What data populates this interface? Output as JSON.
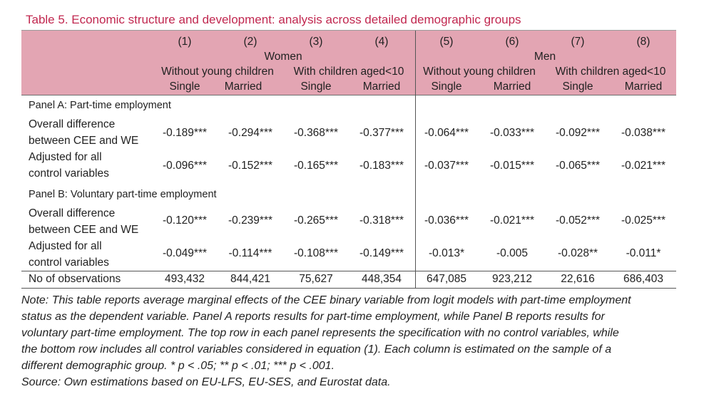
{
  "title": "Table 5. Economic structure and development: analysis across detailed demographic groups",
  "header": {
    "column_numbers": [
      "(1)",
      "(2)",
      "(3)",
      "(4)",
      "(5)",
      "(6)",
      "(7)",
      "(8)"
    ],
    "gender_women": "Women",
    "gender_men": "Men",
    "children_groups": [
      "Without young children",
      "With children aged<10",
      "Without young children",
      "With children aged<10"
    ],
    "marital": [
      "Single",
      "Married",
      "Single",
      "Married",
      "Single",
      "Married",
      "Single",
      "Married"
    ]
  },
  "panels": [
    {
      "title": "Panel A: Part-time employment",
      "rows": [
        {
          "label": [
            "Overall difference",
            "between CEE and WE"
          ],
          "values": [
            "-0.189***",
            "-0.294***",
            "-0.368***",
            "-0.377***",
            "-0.064***",
            "-0.033***",
            "-0.092***",
            "-0.038***"
          ]
        },
        {
          "label": [
            "Adjusted for all",
            "control variables"
          ],
          "values": [
            "-0.096***",
            "-0.152***",
            "-0.165***",
            "-0.183***",
            "-0.037***",
            "-0.015***",
            "-0.065***",
            "-0.021***"
          ]
        }
      ]
    },
    {
      "title": "Panel B: Voluntary part-time employment",
      "rows": [
        {
          "label": [
            "Overall difference",
            "between CEE and WE"
          ],
          "values": [
            "-0.120***",
            "-0.239***",
            "-0.265***",
            "-0.318***",
            "-0.036***",
            "-0.021***",
            "-0.052***",
            "-0.025***"
          ]
        },
        {
          "label": [
            "Adjusted for all",
            "control variables"
          ],
          "values": [
            "-0.049***",
            "-0.114***",
            "-0.108***",
            "-0.149***",
            "-0.013*",
            "-0.005",
            "-0.028**",
            "-0.011*"
          ]
        }
      ]
    }
  ],
  "observations": {
    "label": "No of observations",
    "values": [
      "493,432",
      "844,421",
      "75,627",
      "448,354",
      "647,085",
      "923,212",
      "22,616",
      "686,403"
    ]
  },
  "notes": [
    "Note: This table reports average marginal effects of the CEE binary variable from logit models with part-time employment",
    "status as the dependent variable. Panel A reports results for part-time employment, while Panel B reports results for",
    "voluntary part-time employment. The top row in each panel represents the specification with no control variables, while",
    "the bottom row includes all control variables considered in equation (1). Each column is estimated on the sample of a",
    "different demographic group. * p < .05; ** p < .01; *** p < .001.",
    "Source: Own estimations based on EU-LFS, EU-SES, and Eurostat data."
  ]
}
